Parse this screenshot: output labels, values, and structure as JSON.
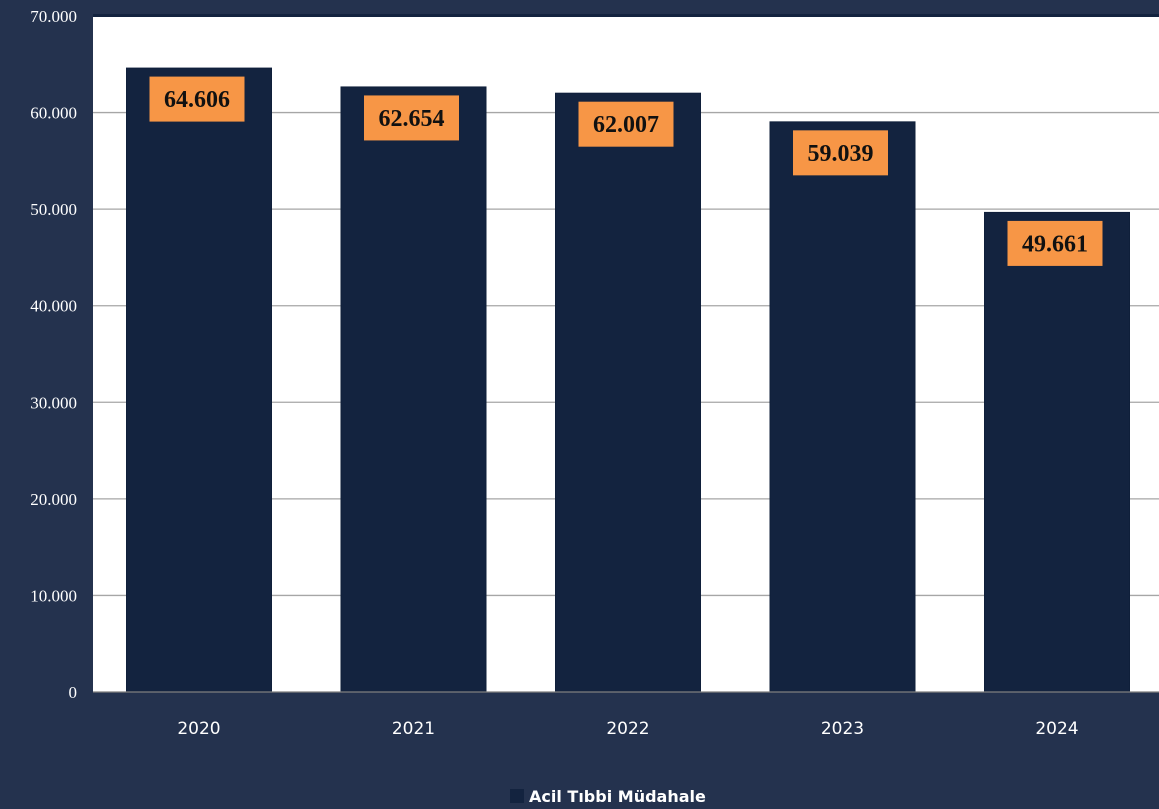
{
  "chart_data": {
    "type": "bar",
    "categories": [
      "2020",
      "2021",
      "2022",
      "2023",
      "2024"
    ],
    "series": [
      {
        "name": "Acil Tıbbi Müdahale",
        "values": [
          64606,
          62654,
          62007,
          59039,
          49661
        ]
      }
    ],
    "data_labels": [
      "64.606",
      "62.654",
      "62.007",
      "59.039",
      "49.661"
    ],
    "yticks": [
      0,
      10000,
      20000,
      30000,
      40000,
      50000,
      60000,
      70000
    ],
    "ytick_labels": [
      "0",
      "10.000",
      "20.000",
      "30.000",
      "40.000",
      "50.000",
      "60.000",
      "70.000"
    ],
    "ylim": [
      0,
      70000
    ],
    "grid": true,
    "legend": "bottom-center",
    "colors": {
      "bar": "#13233f",
      "bar_edge": "#0f1f3a",
      "label_bg": "#f79646",
      "label_text": "#111111",
      "plot_bg": "#ffffff",
      "frame_bg": "#24324e",
      "grid": "#a6a6a6",
      "text": "#ffffff"
    }
  }
}
